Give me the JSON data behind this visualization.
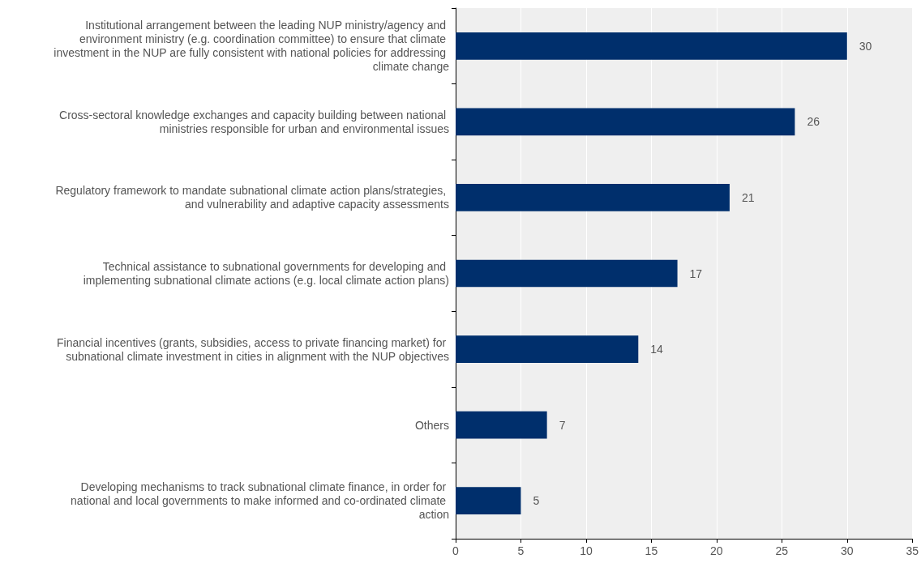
{
  "chart_data": {
    "type": "bar",
    "orientation": "horizontal",
    "categories": [
      "Institutional arrangement between the leading NUP ministry/agency and environment ministry (e.g. coordination committee) to ensure that climate investment in the NUP are fully consistent with national policies for addressing climate change",
      "Cross-sectoral knowledge exchanges and capacity building between national ministries responsible for urban and environmental issues",
      "Regulatory framework to mandate subnational climate action plans/strategies, and vulnerability and adaptive capacity assessments",
      "Technical assistance to subnational governments for developing and implementing subnational climate actions (e.g. local climate action plans)",
      "Financial incentives (grants, subsidies, access to private financing market) for subnational climate investment in cities in alignment with the NUP objectives",
      "Others",
      "Developing mechanisms to track subnational climate finance, in order for national and local governments to make informed and co-ordinated climate action"
    ],
    "values": [
      30,
      26,
      21,
      17,
      14,
      7,
      5
    ],
    "color": "#002f6c",
    "xlim": [
      0,
      35
    ],
    "xticks": [
      0,
      5,
      10,
      15,
      20,
      25,
      30,
      35
    ],
    "grid": "x",
    "data_labels": true
  }
}
